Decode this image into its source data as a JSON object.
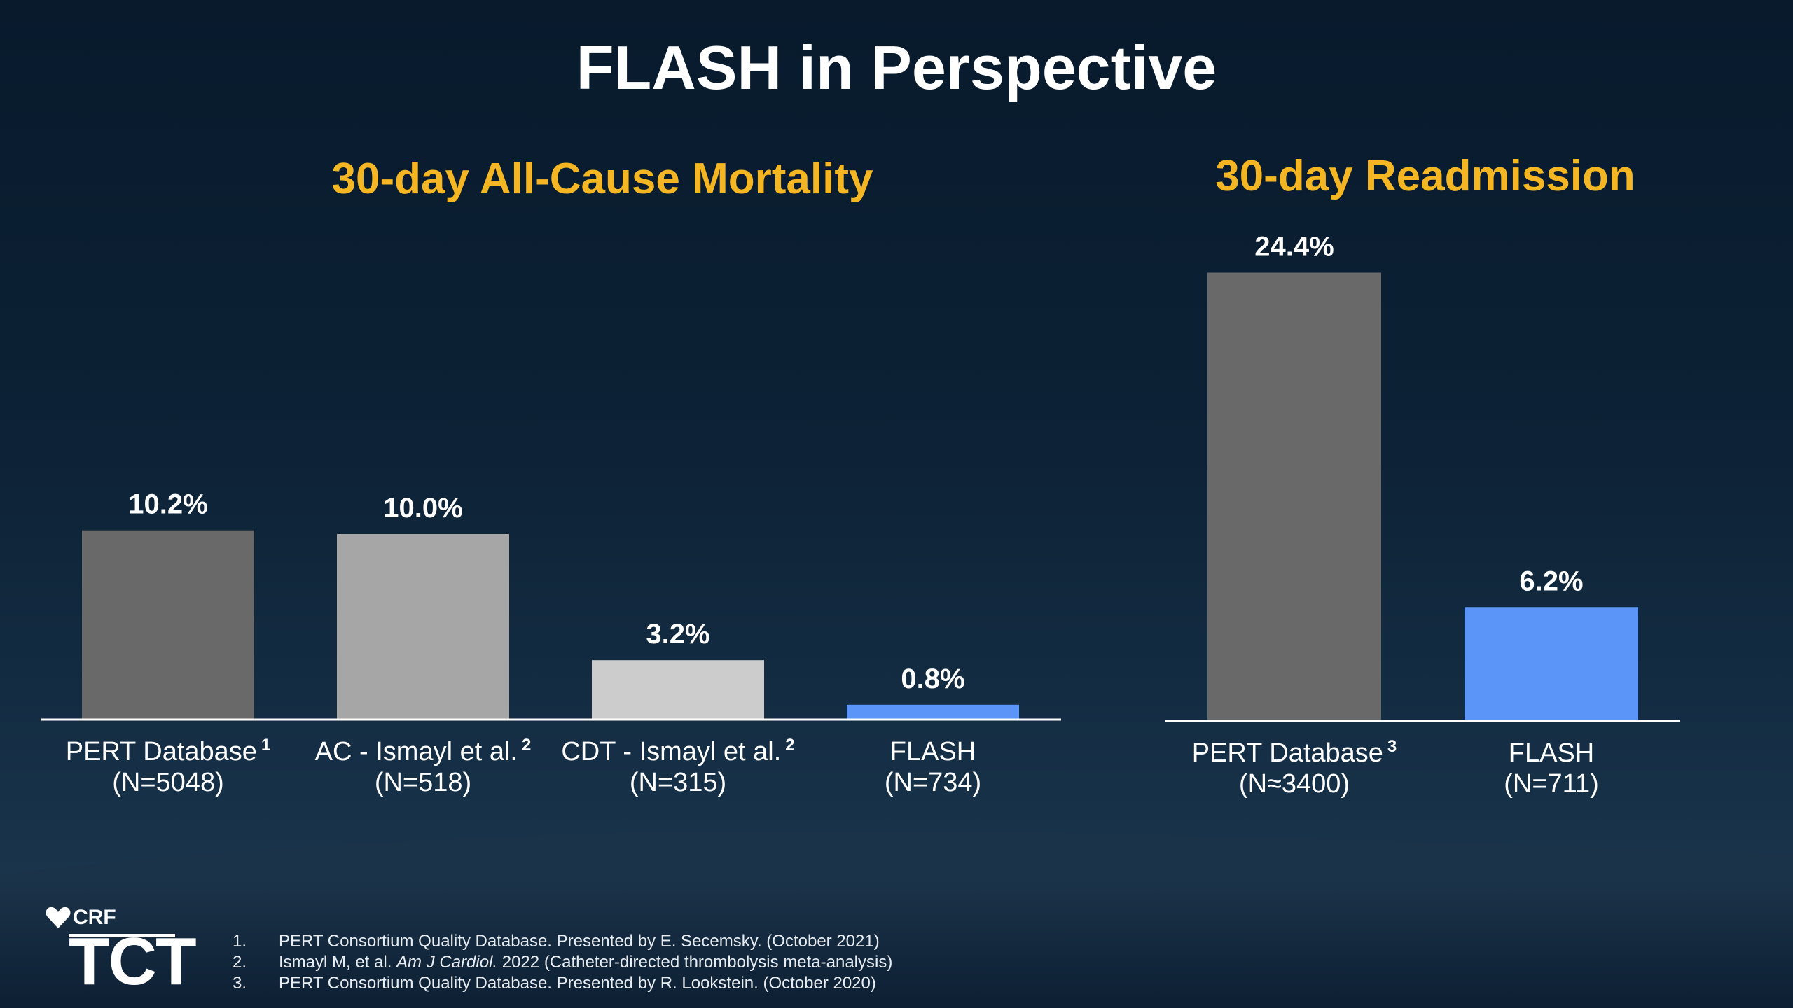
{
  "title": "FLASH in Perspective",
  "colors": {
    "title": "#ffffff",
    "panel_title": "#f5b623",
    "flash_bar": "#5b95f8",
    "background": "#0b1d30"
  },
  "chart_data": [
    {
      "type": "bar",
      "title": "30-day All-Cause Mortality",
      "categories": [
        {
          "name": "PERT Database",
          "sup": "1",
          "n": "(N=5048)"
        },
        {
          "name": "AC - Ismayl et al.",
          "sup": "2",
          "n": "(N=518)"
        },
        {
          "name": "CDT - Ismayl et al.",
          "sup": "2",
          "n": "(N=315)"
        },
        {
          "name": "FLASH",
          "sup": "",
          "n": "(N=734)"
        }
      ],
      "values": [
        10.2,
        10.0,
        3.2,
        0.8
      ],
      "value_labels": [
        "10.2%",
        "10.0%",
        "3.2%",
        "0.8%"
      ],
      "bar_colors": [
        "#696969",
        "#a6a6a6",
        "#cccccc",
        "#5b95f8"
      ],
      "ylim": [
        0,
        25
      ],
      "grid": false
    },
    {
      "type": "bar",
      "title": "30-day Readmission",
      "categories": [
        {
          "name": "PERT Database",
          "sup": "3",
          "n": "(N≈3400)"
        },
        {
          "name": "FLASH",
          "sup": "",
          "n": "(N=711)"
        }
      ],
      "values": [
        24.4,
        6.2
      ],
      "value_labels": [
        "24.4%",
        "6.2%"
      ],
      "bar_colors": [
        "#696969",
        "#5b95f8"
      ],
      "ylim": [
        0,
        25
      ],
      "grid": false
    }
  ],
  "footnotes": [
    {
      "num": "1.",
      "text": "PERT Consortium Quality Database. Presented by E. Secemsky. (October 2021)"
    },
    {
      "num": "2.",
      "pre": "Ismayl M, et al. ",
      "ital": "Am J Cardiol.",
      "post": " 2022 (Catheter-directed thrombolysis meta-analysis)"
    },
    {
      "num": "3.",
      "text": "PERT Consortium Quality Database. Presented by R. Lookstein. (October 2020)"
    }
  ],
  "logo": {
    "crf": "CRF",
    "tct": "TCT"
  }
}
